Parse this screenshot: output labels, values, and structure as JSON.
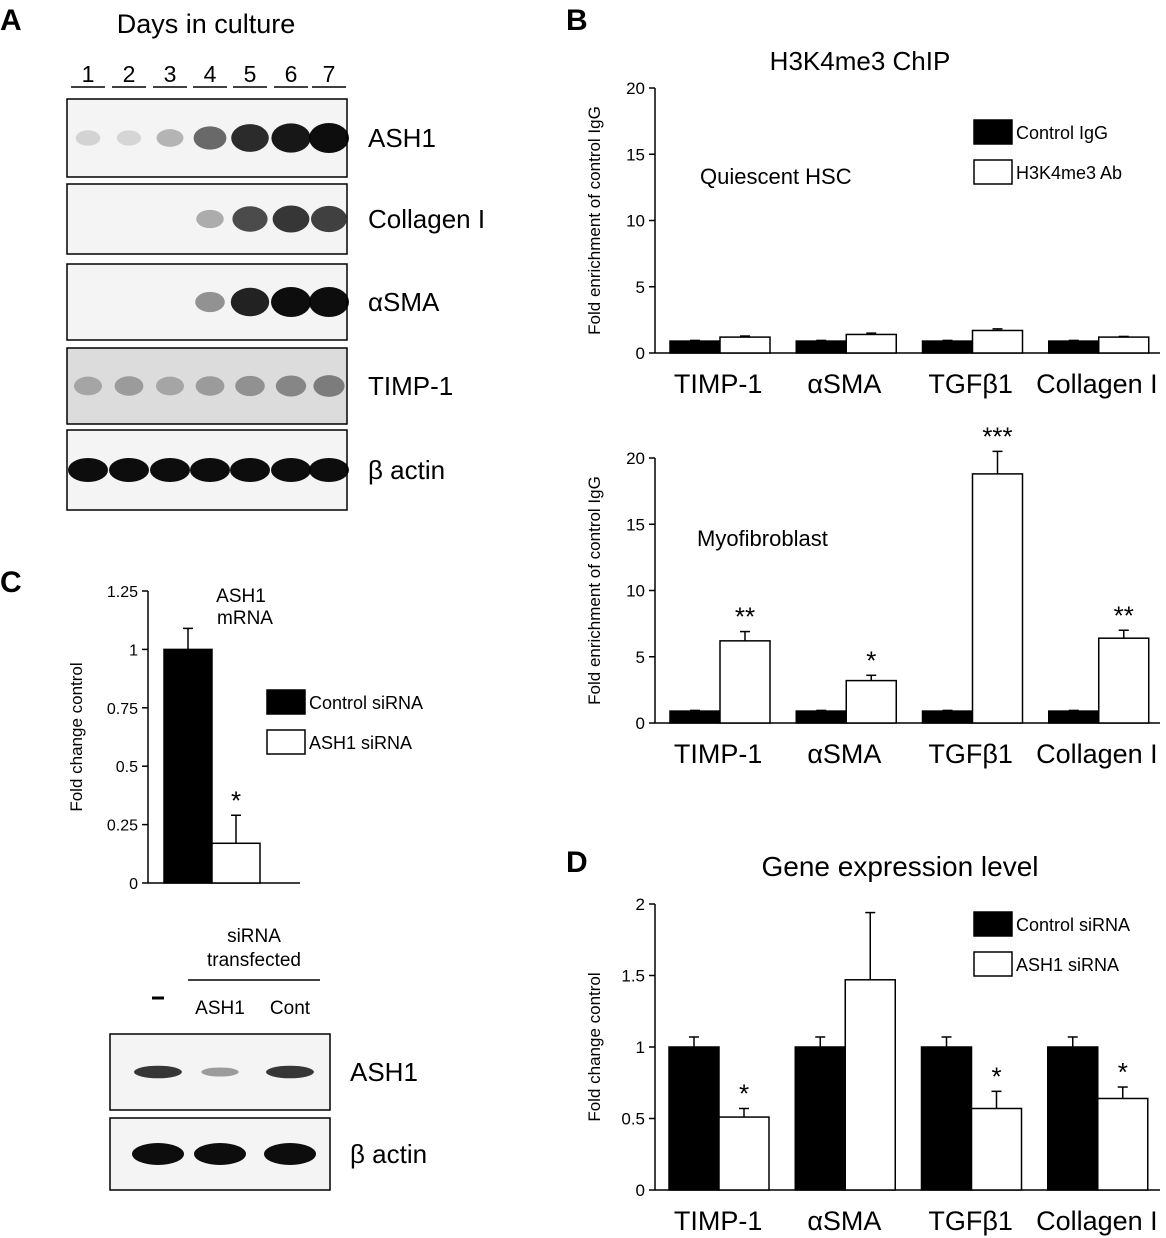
{
  "panel_labels": {
    "a": "A",
    "b": "B",
    "c": "C",
    "d": "D"
  },
  "panelA": {
    "title": "Days in culture",
    "lanes": [
      "1",
      "2",
      "3",
      "4",
      "5",
      "6",
      "7"
    ],
    "blots": [
      {
        "label": "ASH1",
        "intensity": [
          0.03,
          0.02,
          0.18,
          0.55,
          0.85,
          0.95,
          1.0
        ]
      },
      {
        "label": "Collagen I",
        "intensity": [
          0.0,
          0.0,
          0.0,
          0.22,
          0.7,
          0.8,
          0.75
        ]
      },
      {
        "label": "αSMA",
        "intensity": [
          0.0,
          0.0,
          0.0,
          0.35,
          0.9,
          1.0,
          1.0
        ]
      },
      {
        "label": "TIMP-1",
        "intensity": [
          0.25,
          0.3,
          0.25,
          0.3,
          0.35,
          0.4,
          0.45
        ]
      },
      {
        "label": "β actin",
        "intensity": [
          1.0,
          1.0,
          1.0,
          1.0,
          1.0,
          1.0,
          1.0
        ]
      }
    ]
  },
  "panelC_blot": {
    "header": [
      "siRNA",
      "transfected"
    ],
    "lanes": [
      "-",
      "ASH1",
      "Cont"
    ],
    "blots": [
      {
        "label": "ASH1",
        "intensity": [
          0.8,
          0.3,
          0.8
        ]
      },
      {
        "label": "β actin",
        "intensity": [
          1.0,
          1.0,
          1.0
        ]
      }
    ]
  },
  "chart_data": [
    {
      "id": "B-top",
      "type": "bar",
      "title": "H3K4me3 ChIP",
      "annotation": "Quiescent HSC",
      "ylabel": "Fold enrichment of control IgG",
      "ylim": [
        0,
        20
      ],
      "yticks": [
        0,
        5,
        10,
        15,
        20
      ],
      "categories": [
        "TIMP-1",
        "αSMA",
        "TGFβ1",
        "Collagen I"
      ],
      "series": [
        {
          "name": "Control IgG",
          "values": [
            0.9,
            0.9,
            0.9,
            0.9
          ],
          "errors": [
            0.05,
            0.05,
            0.05,
            0.05
          ],
          "color": "#000000"
        },
        {
          "name": "H3K4me3 Ab",
          "values": [
            1.2,
            1.4,
            1.7,
            1.2
          ],
          "errors": [
            0.08,
            0.1,
            0.12,
            0.05
          ],
          "color": "#ffffff"
        }
      ],
      "significance": [
        "",
        "",
        "",
        ""
      ],
      "legend": "top-right"
    },
    {
      "id": "B-bottom",
      "type": "bar",
      "annotation": "Myofibroblast",
      "ylabel": "Fold enrichment of control IgG",
      "ylim": [
        0,
        20
      ],
      "yticks": [
        0,
        5,
        10,
        15,
        20
      ],
      "categories": [
        "TIMP-1",
        "αSMA",
        "TGFβ1",
        "Collagen I"
      ],
      "series": [
        {
          "name": "Control IgG",
          "values": [
            0.9,
            0.9,
            0.9,
            0.9
          ],
          "errors": [
            0.05,
            0.05,
            0.05,
            0.05
          ],
          "color": "#000000"
        },
        {
          "name": "H3K4me3 Ab",
          "values": [
            6.2,
            3.2,
            18.8,
            6.4
          ],
          "errors": [
            0.7,
            0.4,
            1.7,
            0.6
          ],
          "color": "#ffffff"
        }
      ],
      "significance": [
        "**",
        "*",
        "***",
        "**"
      ]
    },
    {
      "id": "C",
      "type": "bar",
      "annotation": [
        "ASH1",
        "mRNA"
      ],
      "ylabel": "Fold change control",
      "ylim": [
        0,
        1.25
      ],
      "yticks": [
        "0",
        "0.25",
        "0.5",
        "0.75",
        "1",
        "1.25"
      ],
      "categories": [
        ""
      ],
      "series": [
        {
          "name": "Control siRNA",
          "values": [
            1.0
          ],
          "errors": [
            0.09
          ],
          "color": "#000000"
        },
        {
          "name": "ASH1 siRNA",
          "values": [
            0.17
          ],
          "errors": [
            0.12
          ],
          "color": "#ffffff"
        }
      ],
      "significance": [
        "*"
      ],
      "legend": "right"
    },
    {
      "id": "D",
      "type": "bar",
      "title": "Gene expression level",
      "ylabel": "Fold change control",
      "ylim": [
        0,
        2
      ],
      "yticks": [
        "0",
        "0.5",
        "1",
        "1.5",
        "2"
      ],
      "categories": [
        "TIMP-1",
        "αSMA",
        "TGFβ1",
        "Collagen I"
      ],
      "series": [
        {
          "name": "Control siRNA",
          "values": [
            1.0,
            1.0,
            1.0,
            1.0
          ],
          "errors": [
            0.07,
            0.07,
            0.07,
            0.07
          ],
          "color": "#000000"
        },
        {
          "name": "ASH1 siRNA",
          "values": [
            0.51,
            1.47,
            0.57,
            0.64
          ],
          "errors": [
            0.06,
            0.47,
            0.12,
            0.08
          ],
          "color": "#ffffff"
        }
      ],
      "significance": [
        "*",
        "",
        "*",
        "*"
      ],
      "legend": "top-right"
    }
  ]
}
